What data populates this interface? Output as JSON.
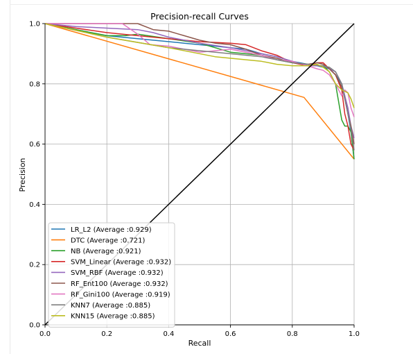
{
  "chart_data": {
    "type": "line",
    "title": "Precision-recall Curves",
    "xlabel": "Recall",
    "ylabel": "Precision",
    "xlim": [
      0.0,
      1.0
    ],
    "ylim": [
      0.0,
      1.0
    ],
    "xticks": [
      "0.0",
      "0.2",
      "0.4",
      "0.6",
      "0.8",
      "1.0"
    ],
    "yticks": [
      "0.0",
      "0.2",
      "0.4",
      "0.6",
      "0.8",
      "1.0"
    ],
    "grid": true,
    "legend_position": "lower-left",
    "diagonal": {
      "x": [
        0.0,
        1.0
      ],
      "y": [
        0.0,
        1.0
      ],
      "color": "#000000"
    },
    "series": [
      {
        "name": "LR_L2 (Average :0.929)",
        "color": "#1f77b4",
        "x": [
          0.0,
          0.1,
          0.2,
          0.3,
          0.4,
          0.45,
          0.5,
          0.55,
          0.6,
          0.65,
          0.7,
          0.75,
          0.8,
          0.85,
          0.88,
          0.9,
          0.92,
          0.94,
          0.96,
          0.97,
          0.98,
          0.99,
          1.0
        ],
        "y": [
          1.0,
          0.98,
          0.96,
          0.95,
          0.94,
          0.935,
          0.93,
          0.925,
          0.92,
          0.915,
          0.9,
          0.89,
          0.875,
          0.865,
          0.86,
          0.855,
          0.85,
          0.83,
          0.8,
          0.76,
          0.7,
          0.64,
          0.55
        ]
      },
      {
        "name": "DTC (Average :0.721)",
        "color": "#ff7f0e",
        "x": [
          0.0,
          0.838,
          1.0
        ],
        "y": [
          1.0,
          0.755,
          0.55
        ]
      },
      {
        "name": "NB (Average :0.921)",
        "color": "#2ca02c",
        "x": [
          0.0,
          0.1,
          0.2,
          0.26,
          0.3,
          0.4,
          0.5,
          0.6,
          0.7,
          0.75,
          0.8,
          0.85,
          0.88,
          0.9,
          0.92,
          0.94,
          0.96,
          0.97,
          0.98,
          0.99,
          1.0
        ],
        "y": [
          1.0,
          0.98,
          0.96,
          0.96,
          0.965,
          0.95,
          0.935,
          0.905,
          0.895,
          0.88,
          0.87,
          0.865,
          0.86,
          0.86,
          0.84,
          0.8,
          0.68,
          0.66,
          0.66,
          0.64,
          0.55
        ]
      },
      {
        "name": "SVM_Linear (Average :0.932)",
        "color": "#d62728",
        "x": [
          0.0,
          0.1,
          0.2,
          0.3,
          0.4,
          0.5,
          0.6,
          0.65,
          0.7,
          0.75,
          0.8,
          0.85,
          0.88,
          0.9,
          0.92,
          0.94,
          0.96,
          0.97,
          0.98,
          0.99,
          1.0
        ],
        "y": [
          1.0,
          0.985,
          0.97,
          0.96,
          0.95,
          0.94,
          0.935,
          0.93,
          0.91,
          0.895,
          0.87,
          0.86,
          0.87,
          0.87,
          0.85,
          0.83,
          0.78,
          0.7,
          0.66,
          0.6,
          0.58
        ]
      },
      {
        "name": "SVM_RBF (Average :0.932)",
        "color": "#9467bd",
        "x": [
          0.0,
          0.1,
          0.2,
          0.3,
          0.35,
          0.4,
          0.5,
          0.6,
          0.7,
          0.75,
          0.8,
          0.85,
          0.88,
          0.9,
          0.92,
          0.94,
          0.96,
          0.97,
          0.98,
          0.99,
          1.0
        ],
        "y": [
          1.0,
          0.99,
          0.985,
          0.98,
          0.97,
          0.955,
          0.935,
          0.92,
          0.9,
          0.89,
          0.875,
          0.86,
          0.86,
          0.86,
          0.85,
          0.84,
          0.8,
          0.76,
          0.72,
          0.66,
          0.62
        ]
      },
      {
        "name": "RF_Ent100 (Average :0.932)",
        "color": "#8c564b",
        "x": [
          0.0,
          0.1,
          0.2,
          0.3,
          0.35,
          0.4,
          0.45,
          0.5,
          0.55,
          0.6,
          0.65,
          0.7,
          0.75,
          0.8,
          0.85,
          0.88,
          0.9,
          0.92,
          0.94,
          0.96,
          0.97,
          0.98,
          0.99,
          1.0
        ],
        "y": [
          1.0,
          1.0,
          1.0,
          1.0,
          0.98,
          0.975,
          0.96,
          0.945,
          0.935,
          0.93,
          0.915,
          0.895,
          0.885,
          0.87,
          0.865,
          0.87,
          0.865,
          0.85,
          0.83,
          0.79,
          0.75,
          0.7,
          0.66,
          0.6
        ]
      },
      {
        "name": "RF_Gini100 (Average :0.919)",
        "color": "#e377c2",
        "x": [
          0.0,
          0.1,
          0.2,
          0.25,
          0.3,
          0.34,
          0.4,
          0.45,
          0.5,
          0.55,
          0.6,
          0.7,
          0.75,
          0.8,
          0.85,
          0.88,
          0.9,
          0.92,
          0.94,
          0.96,
          0.97,
          0.98,
          0.99,
          1.0
        ],
        "y": [
          1.0,
          1.0,
          1.0,
          1.0,
          0.965,
          0.93,
          0.925,
          0.915,
          0.905,
          0.91,
          0.915,
          0.895,
          0.88,
          0.875,
          0.86,
          0.85,
          0.845,
          0.83,
          0.8,
          0.76,
          0.78,
          0.77,
          0.72,
          0.69
        ]
      },
      {
        "name": "KNN7 (Average :0.885)",
        "color": "#7f7f7f",
        "x": [
          0.0,
          0.2,
          0.4,
          0.6,
          0.7,
          0.8,
          0.85,
          0.9,
          0.92,
          0.94,
          0.96,
          0.97,
          0.98,
          0.99,
          1.0
        ],
        "y": [
          1.0,
          0.955,
          0.92,
          0.9,
          0.89,
          0.87,
          0.865,
          0.86,
          0.855,
          0.84,
          0.8,
          0.75,
          0.7,
          0.65,
          0.58
        ]
      },
      {
        "name": "KNN15 (Average :0.885)",
        "color": "#bcbd22",
        "x": [
          0.0,
          0.2,
          0.4,
          0.55,
          0.7,
          0.75,
          0.8,
          0.85,
          0.88,
          0.9,
          0.92,
          0.94,
          0.96,
          0.98,
          0.99,
          1.0
        ],
        "y": [
          1.0,
          0.955,
          0.92,
          0.89,
          0.875,
          0.865,
          0.86,
          0.86,
          0.865,
          0.855,
          0.84,
          0.8,
          0.78,
          0.77,
          0.75,
          0.72
        ]
      }
    ]
  }
}
